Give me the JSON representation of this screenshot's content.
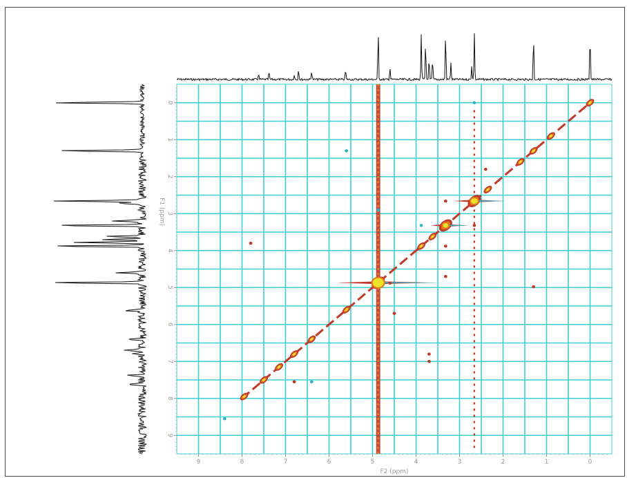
{
  "chart_data": {
    "type": "heatmap",
    "subtype": "2D NMR COSY contour plot",
    "xlabel": "F2 (ppm)",
    "ylabel": "F1 (ppm)",
    "x_ticks": [
      9,
      8,
      7,
      6,
      5,
      4,
      3,
      2,
      1,
      0
    ],
    "y_ticks": [
      0,
      1,
      2,
      3,
      4,
      5,
      6,
      7,
      8,
      9
    ],
    "xlim": [
      9.5,
      -0.5
    ],
    "ylim": [
      -0.5,
      9.5
    ],
    "x_reversed": true,
    "grid": true,
    "grid_color": "#3ccfd2",
    "projection_peaks_ppm": [
      {
        "ppm": 7.62,
        "height": 0.12
      },
      {
        "ppm": 7.38,
        "height": 0.16
      },
      {
        "ppm": 6.8,
        "height": 0.1
      },
      {
        "ppm": 6.7,
        "height": 0.22
      },
      {
        "ppm": 6.4,
        "height": 0.18
      },
      {
        "ppm": 5.62,
        "height": 0.2
      },
      {
        "ppm": 4.87,
        "height": 1.0
      },
      {
        "ppm": 4.6,
        "height": 0.25
      },
      {
        "ppm": 3.88,
        "height": 0.92
      },
      {
        "ppm": 3.78,
        "height": 0.75
      },
      {
        "ppm": 3.7,
        "height": 0.45
      },
      {
        "ppm": 3.62,
        "height": 0.4
      },
      {
        "ppm": 3.32,
        "height": 0.95
      },
      {
        "ppm": 3.2,
        "height": 0.35
      },
      {
        "ppm": 2.72,
        "height": 0.28
      },
      {
        "ppm": 2.66,
        "height": 0.95
      },
      {
        "ppm": 1.3,
        "height": 0.9
      },
      {
        "ppm": 0.0,
        "height": 0.95
      }
    ],
    "diagonal_peaks_ppm": [
      7.95,
      7.5,
      7.15,
      6.8,
      6.4,
      5.6,
      4.87,
      3.88,
      3.62,
      3.32,
      2.66,
      2.35,
      1.6,
      1.3,
      0.9,
      0.0
    ],
    "cross_peaks_ppm": [
      {
        "f2": 4.87,
        "f1": 2.9
      },
      {
        "f2": 4.6,
        "f1": 4.88
      },
      {
        "f2": 3.32,
        "f1": 3.88
      },
      {
        "f2": 3.88,
        "f1": 3.32
      },
      {
        "f2": 2.66,
        "f1": 3.32
      },
      {
        "f2": 3.32,
        "f1": 2.66
      },
      {
        "f2": 2.66,
        "f1": 0.0
      },
      {
        "f2": 2.4,
        "f1": 1.8
      },
      {
        "f2": 1.3,
        "f1": 4.98
      },
      {
        "f2": 5.6,
        "f1": 1.3
      },
      {
        "f2": 7.8,
        "f1": 3.8
      },
      {
        "f2": 6.8,
        "f1": 7.55
      },
      {
        "f2": 6.4,
        "f1": 7.55
      },
      {
        "f2": 3.7,
        "f1": 6.8
      },
      {
        "f2": 3.7,
        "f1": 7.0
      },
      {
        "f2": 8.4,
        "f1": 8.55
      },
      {
        "f2": 3.32,
        "f1": 4.7
      },
      {
        "f2": 4.5,
        "f1": 5.7
      }
    ],
    "vertical_streaks_ppm": [
      4.87,
      2.66
    ],
    "colors": {
      "contour_outer": "#c0392b",
      "contour_mid": "#e07a1f",
      "contour_inner": "#f2e12a",
      "negative": "#2fb0c4",
      "trace": "#111111"
    }
  }
}
